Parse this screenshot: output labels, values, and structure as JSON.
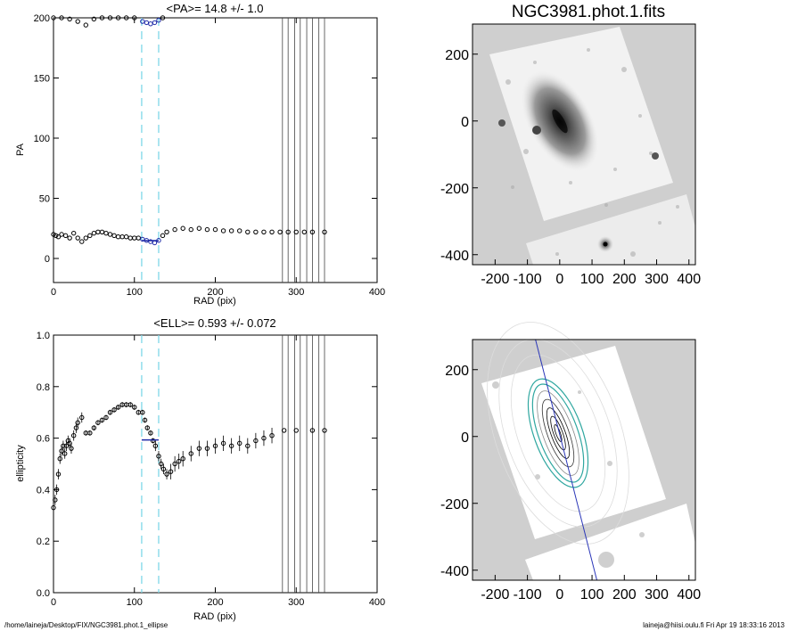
{
  "footer": {
    "path": "/home/laineja/Desktop/FIX/NGC3981.phot.1_ellipse",
    "user_time": "laineja@hiisi.oulu.fi  Fri Apr 19 18:33:16 2013"
  },
  "colors": {
    "bracket": "#7fd8e8",
    "highlight": "#1e2aa8",
    "image_bg": "#cfcfcf",
    "contour": "#ffffff",
    "isophote_fit": "#2fa7a0"
  },
  "chart_data": [
    {
      "type": "scatter",
      "title": "<PA>=  14.8 +/-   1.0",
      "xlabel": "RAD (pix)",
      "ylabel": "PA",
      "xlim": [
        0,
        400
      ],
      "ylim": [
        -20,
        200
      ],
      "xticks": [
        0,
        100,
        200,
        300,
        400
      ],
      "yticks": [
        0,
        50,
        100,
        150,
        200
      ],
      "bracket_x": [
        109,
        130
      ],
      "vlines_x": [
        283,
        290,
        298,
        305,
        313,
        320,
        328,
        335
      ],
      "upper_branch": {
        "x": [
          0,
          10,
          20,
          30,
          40,
          50,
          60,
          70,
          80,
          90,
          100,
          110,
          115,
          120,
          125,
          130,
          135
        ],
        "y": [
          200,
          200,
          199,
          197,
          194,
          199,
          200,
          200,
          200,
          200,
          200,
          197,
          196,
          195,
          196,
          198,
          200
        ]
      },
      "series": {
        "x": [
          0,
          3,
          6,
          10,
          15,
          20,
          25,
          30,
          35,
          40,
          45,
          50,
          55,
          60,
          65,
          70,
          75,
          80,
          85,
          90,
          95,
          100,
          105,
          110,
          115,
          120,
          125,
          130,
          135,
          140,
          150,
          160,
          170,
          180,
          190,
          200,
          210,
          220,
          230,
          240,
          250,
          260,
          270,
          280,
          290,
          300,
          310,
          320,
          335
        ],
        "y": [
          20,
          19,
          18,
          20,
          19,
          17,
          21,
          17,
          14,
          17,
          19,
          21,
          22,
          22,
          21,
          20,
          19,
          18,
          18,
          18,
          17,
          17,
          17,
          16,
          15,
          14,
          13,
          15,
          19,
          22,
          24,
          25,
          24,
          25,
          24,
          24,
          23,
          23,
          23,
          22,
          22,
          22,
          22,
          22,
          22,
          22,
          22,
          22,
          22
        ]
      },
      "highlight": {
        "x": [
          109,
          130
        ],
        "y": [
          14.8,
          14.8
        ]
      }
    },
    {
      "type": "scatter",
      "title": "<ELL>= 0.593 +/-  0.072",
      "xlabel": "RAD (pix)",
      "ylabel": "ellipticity",
      "xlim": [
        0,
        400
      ],
      "ylim": [
        0,
        1
      ],
      "xticks": [
        0,
        100,
        200,
        300,
        400
      ],
      "yticks": [
        0.0,
        0.2,
        0.4,
        0.6,
        0.8,
        1.0
      ],
      "ytick_labels": [
        "0.0",
        "0.2",
        "0.4",
        "0.6",
        "0.8",
        "1.0"
      ],
      "bracket_x": [
        109,
        130
      ],
      "vlines_x": [
        283,
        290,
        298,
        305,
        313,
        320,
        328,
        335
      ],
      "series": {
        "x": [
          0,
          2,
          4,
          6,
          8,
          10,
          12,
          14,
          16,
          18,
          20,
          22,
          25,
          28,
          30,
          35,
          40,
          45,
          50,
          55,
          60,
          65,
          70,
          75,
          80,
          85,
          90,
          95,
          100,
          105,
          110,
          113,
          116,
          120,
          123,
          126,
          130,
          133,
          136,
          140,
          145,
          150,
          155,
          160,
          170,
          180,
          190,
          200,
          210,
          220,
          230,
          240,
          250,
          260,
          270,
          285,
          300,
          320,
          335
        ],
        "y": [
          0.33,
          0.36,
          0.4,
          0.46,
          0.52,
          0.55,
          0.57,
          0.54,
          0.57,
          0.59,
          0.58,
          0.56,
          0.61,
          0.64,
          0.66,
          0.68,
          0.62,
          0.62,
          0.64,
          0.66,
          0.67,
          0.68,
          0.7,
          0.71,
          0.72,
          0.73,
          0.73,
          0.73,
          0.72,
          0.7,
          0.7,
          0.67,
          0.64,
          0.62,
          0.59,
          0.57,
          0.53,
          0.5,
          0.48,
          0.46,
          0.47,
          0.5,
          0.51,
          0.52,
          0.54,
          0.56,
          0.56,
          0.57,
          0.58,
          0.57,
          0.58,
          0.57,
          0.59,
          0.6,
          0.61,
          0.63,
          0.63,
          0.63,
          0.63
        ],
        "err": [
          0.02,
          0.02,
          0.02,
          0.02,
          0.02,
          0.02,
          0.02,
          0.02,
          0.02,
          0.02,
          0.02,
          0.02,
          0.02,
          0.02,
          0.02,
          0.02,
          0.01,
          0.01,
          0.01,
          0.01,
          0.01,
          0.01,
          0.01,
          0.01,
          0.01,
          0.01,
          0.01,
          0.01,
          0.01,
          0.01,
          0.01,
          0.01,
          0.01,
          0.01,
          0.01,
          0.02,
          0.02,
          0.02,
          0.02,
          0.02,
          0.03,
          0.03,
          0.03,
          0.03,
          0.03,
          0.03,
          0.03,
          0.03,
          0.03,
          0.03,
          0.03,
          0.03,
          0.03,
          0.03,
          0.03,
          0.0,
          0.0,
          0.0,
          0.0
        ]
      },
      "highlight": {
        "x": [
          109,
          130
        ],
        "y": [
          0.593,
          0.593
        ]
      }
    },
    {
      "type": "image",
      "title": "NGC3981.phot.1.fits",
      "xlim": [
        -270,
        420
      ],
      "ylim": [
        -430,
        290
      ],
      "xticks": [
        -200,
        -100,
        0,
        100,
        200,
        300,
        400
      ],
      "yticks": [
        -400,
        -200,
        0,
        200
      ]
    },
    {
      "type": "image",
      "title": "",
      "xlim": [
        -270,
        420
      ],
      "ylim": [
        -430,
        290
      ],
      "xticks": [
        -200,
        -100,
        0,
        100,
        200,
        300,
        400
      ],
      "yticks": [
        -400,
        -200,
        0,
        200
      ],
      "major_axis_line": {
        "x": [
          -75,
          115
        ],
        "y": [
          300,
          -440
        ]
      }
    }
  ]
}
